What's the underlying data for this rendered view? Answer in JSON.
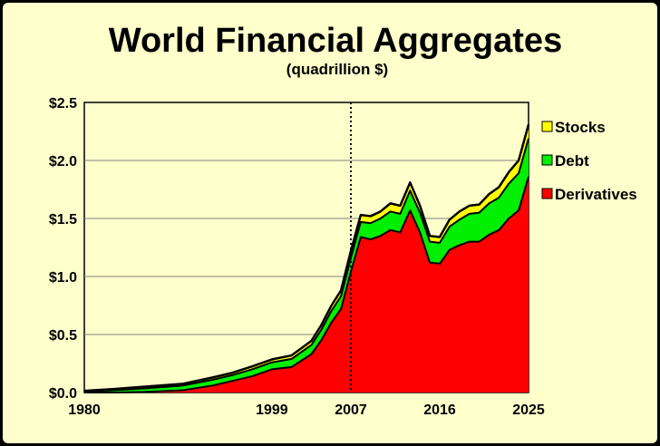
{
  "chart_data": {
    "type": "area",
    "title": "World Financial Aggregates",
    "subtitle": "(quadrillion $)",
    "xlabel": "",
    "ylabel": "",
    "xlim": [
      1980,
      2025
    ],
    "ylim": [
      0,
      2.5
    ],
    "stacked": true,
    "grid": true,
    "legend_position": "right",
    "marker_year": 2007,
    "x_ticks": [
      1980,
      1999,
      2007,
      2016,
      2025
    ],
    "x_tick_labels": [
      "1980",
      "1999",
      "2007",
      "2016",
      "2025"
    ],
    "y_ticks": [
      0,
      0.5,
      1.0,
      1.5,
      2.0,
      2.5
    ],
    "y_tick_labels": [
      "$0.0",
      "$0.5",
      "$1.0",
      "$1.5",
      "$2.0",
      "$2.5"
    ],
    "x": [
      1980,
      1983,
      1986,
      1990,
      1993,
      1995,
      1997,
      1999,
      2001,
      2003,
      2004,
      2005,
      2006,
      2007,
      2008,
      2009,
      2010,
      2011,
      2012,
      2013,
      2014,
      2015,
      2016,
      2017,
      2018,
      2019,
      2020,
      2021,
      2022,
      2023,
      2024,
      2025
    ],
    "series": [
      {
        "name": "Derivatives",
        "color": "#FF0000",
        "values": [
          0.0,
          0.0,
          0.005,
          0.02,
          0.06,
          0.1,
          0.14,
          0.2,
          0.22,
          0.33,
          0.45,
          0.6,
          0.72,
          1.04,
          1.34,
          1.32,
          1.35,
          1.4,
          1.38,
          1.57,
          1.38,
          1.12,
          1.11,
          1.23,
          1.27,
          1.3,
          1.3,
          1.36,
          1.4,
          1.5,
          1.57,
          1.86
        ]
      },
      {
        "name": "Debt",
        "color": "#00EE00",
        "values": [
          0.01,
          0.02,
          0.03,
          0.04,
          0.05,
          0.05,
          0.06,
          0.06,
          0.07,
          0.08,
          0.09,
          0.1,
          0.11,
          0.12,
          0.13,
          0.14,
          0.15,
          0.16,
          0.16,
          0.17,
          0.17,
          0.18,
          0.18,
          0.2,
          0.22,
          0.24,
          0.25,
          0.27,
          0.28,
          0.3,
          0.32,
          0.33
        ]
      },
      {
        "name": "Stocks",
        "color": "#FFFF00",
        "values": [
          0.005,
          0.01,
          0.015,
          0.015,
          0.02,
          0.02,
          0.025,
          0.025,
          0.03,
          0.035,
          0.04,
          0.045,
          0.05,
          0.06,
          0.06,
          0.06,
          0.06,
          0.07,
          0.07,
          0.07,
          0.06,
          0.05,
          0.05,
          0.06,
          0.07,
          0.07,
          0.07,
          0.08,
          0.09,
          0.1,
          0.11,
          0.12
        ]
      }
    ],
    "legend": [
      "Stocks",
      "Debt",
      "Derivatives"
    ]
  },
  "colors": {
    "background": "#FFFFCC",
    "frame": "#000000",
    "outline": "#000000",
    "gridline": "#808080"
  }
}
